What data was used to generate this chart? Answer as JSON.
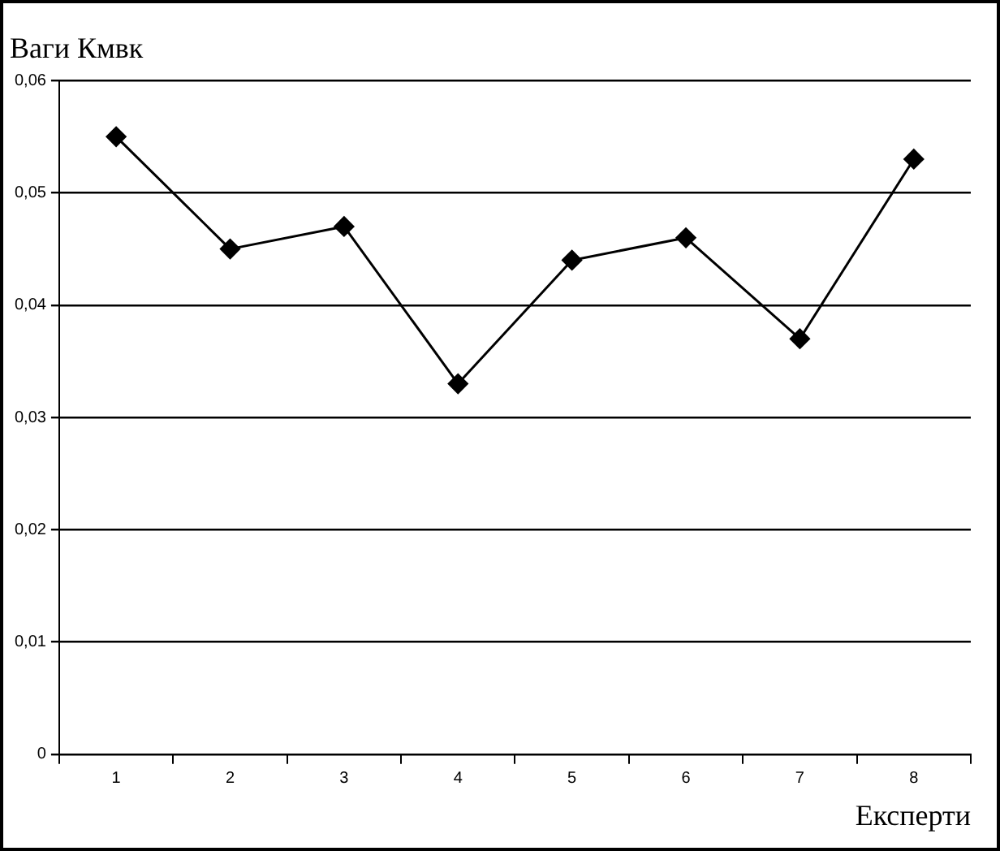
{
  "chart_data": {
    "type": "line",
    "title": "Ваги Кмвк",
    "xlabel": "Експерти",
    "categories": [
      "1",
      "2",
      "3",
      "4",
      "5",
      "6",
      "7",
      "8"
    ],
    "series": [
      {
        "color": "#000000",
        "values": [
          0.055,
          0.045,
          0.047,
          0.033,
          0.044,
          0.046,
          0.037,
          0.053
        ]
      }
    ],
    "ylim": [
      0,
      0.06
    ],
    "yticks": [
      {
        "value": 0,
        "label": "0"
      },
      {
        "value": 0.01,
        "label": "0,01"
      },
      {
        "value": 0.02,
        "label": "0,02"
      },
      {
        "value": 0.03,
        "label": "0,03"
      },
      {
        "value": 0.04,
        "label": "0,04"
      },
      {
        "value": 0.05,
        "label": "0,05"
      },
      {
        "value": 0.06,
        "label": "0,06"
      }
    ],
    "grid": "y",
    "legend": false,
    "marker": "diamond",
    "line_style": "solid"
  }
}
